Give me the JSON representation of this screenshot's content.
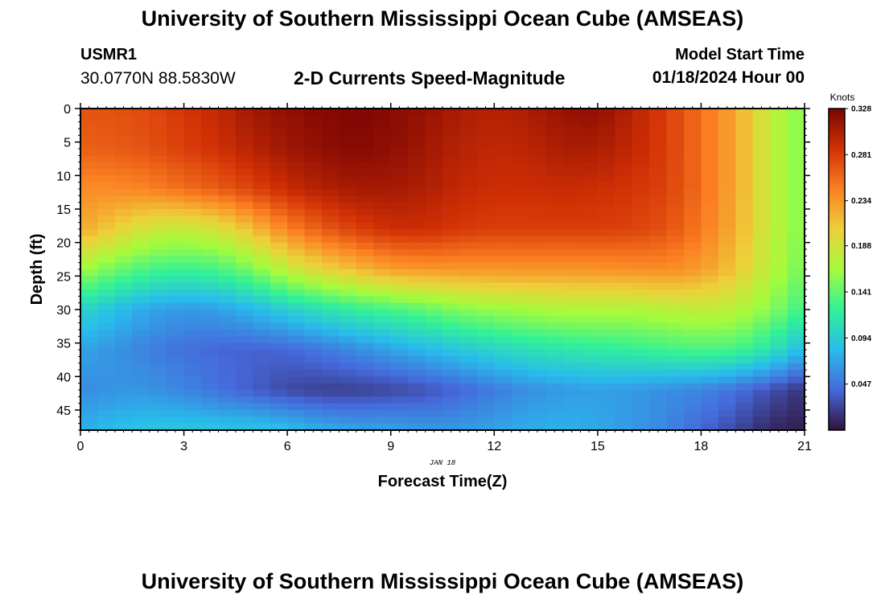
{
  "header": {
    "title": "University of Southern Mississippi Ocean Cube (AMSEAS)",
    "station": "USMR1",
    "coords": "30.0770N  88.5830W",
    "subtitle": "2-D Currents Speed-Magnitude",
    "model_start_label": "Model Start Time",
    "model_start_value": "01/18/2024 Hour 00"
  },
  "footer": {
    "title": "University of Southern Mississippi Ocean Cube (AMSEAS)"
  },
  "chart_data": {
    "type": "heatmap",
    "title": "2-D Currents Speed-Magnitude",
    "xlabel": "Forecast Time(Z)",
    "ylabel": "Depth (ft)",
    "date_label": "JAN 18",
    "xlim": [
      0,
      21
    ],
    "ylim": [
      48,
      0
    ],
    "x_ticks": [
      "0",
      "3",
      "6",
      "9",
      "12",
      "15",
      "18",
      "21"
    ],
    "y_ticks": [
      "0",
      "5",
      "10",
      "15",
      "20",
      "25",
      "30",
      "35",
      "40",
      "45"
    ],
    "colorbar": {
      "unit_label": "Knots",
      "ticks": [
        "0.328",
        "0.281",
        "0.234",
        "0.188",
        "0.141",
        "0.094",
        "0.047"
      ],
      "vmin": 0.0,
      "vmax": 0.328,
      "colors": [
        "#30123b",
        "#4669db",
        "#28bceb",
        "#32f197",
        "#a4fc3c",
        "#eecf3a",
        "#fb8022",
        "#d23105",
        "#7a0403"
      ]
    },
    "grid": {
      "times": [
        0,
        1,
        2,
        3,
        4,
        5,
        6,
        7,
        8,
        9,
        10,
        11,
        12,
        13,
        14,
        15,
        16,
        17,
        18,
        19,
        20,
        21
      ],
      "depths": [
        0,
        6,
        12,
        18,
        24,
        30,
        36,
        42,
        48
      ],
      "speeds": [
        [
          0.27,
          0.27,
          0.275,
          0.285,
          0.295,
          0.31,
          0.318,
          0.323,
          0.326,
          0.322,
          0.315,
          0.305,
          0.3,
          0.305,
          0.315,
          0.318,
          0.3,
          0.28,
          0.255,
          0.225,
          0.18,
          0.15
        ],
        [
          0.262,
          0.265,
          0.27,
          0.28,
          0.288,
          0.3,
          0.31,
          0.318,
          0.322,
          0.318,
          0.31,
          0.3,
          0.295,
          0.298,
          0.305,
          0.305,
          0.295,
          0.28,
          0.255,
          0.225,
          0.18,
          0.15
        ],
        [
          0.24,
          0.24,
          0.245,
          0.255,
          0.265,
          0.278,
          0.292,
          0.302,
          0.308,
          0.308,
          0.303,
          0.295,
          0.29,
          0.29,
          0.292,
          0.29,
          0.285,
          0.278,
          0.255,
          0.225,
          0.18,
          0.15
        ],
        [
          0.225,
          0.205,
          0.185,
          0.18,
          0.19,
          0.215,
          0.245,
          0.265,
          0.28,
          0.29,
          0.29,
          0.283,
          0.28,
          0.28,
          0.28,
          0.28,
          0.278,
          0.27,
          0.25,
          0.222,
          0.18,
          0.15
        ],
        [
          0.165,
          0.145,
          0.13,
          0.125,
          0.13,
          0.15,
          0.18,
          0.2,
          0.215,
          0.23,
          0.235,
          0.235,
          0.235,
          0.236,
          0.235,
          0.236,
          0.238,
          0.24,
          0.232,
          0.21,
          0.175,
          0.145
        ],
        [
          0.1,
          0.085,
          0.07,
          0.065,
          0.068,
          0.08,
          0.095,
          0.11,
          0.122,
          0.13,
          0.14,
          0.152,
          0.16,
          0.165,
          0.17,
          0.17,
          0.17,
          0.175,
          0.18,
          0.175,
          0.155,
          0.125
        ],
        [
          0.07,
          0.062,
          0.052,
          0.045,
          0.04,
          0.038,
          0.04,
          0.048,
          0.058,
          0.07,
          0.08,
          0.09,
          0.1,
          0.108,
          0.114,
          0.118,
          0.122,
          0.128,
          0.132,
          0.13,
          0.112,
          0.08
        ],
        [
          0.058,
          0.062,
          0.062,
          0.055,
          0.045,
          0.036,
          0.026,
          0.022,
          0.022,
          0.025,
          0.03,
          0.04,
          0.05,
          0.06,
          0.065,
          0.068,
          0.065,
          0.06,
          0.055,
          0.045,
          0.03,
          0.015
        ],
        [
          0.075,
          0.085,
          0.09,
          0.09,
          0.09,
          0.09,
          0.085,
          0.075,
          0.07,
          0.07,
          0.065,
          0.065,
          0.07,
          0.075,
          0.078,
          0.072,
          0.065,
          0.055,
          0.04,
          0.025,
          0.01,
          0.005
        ]
      ]
    }
  }
}
